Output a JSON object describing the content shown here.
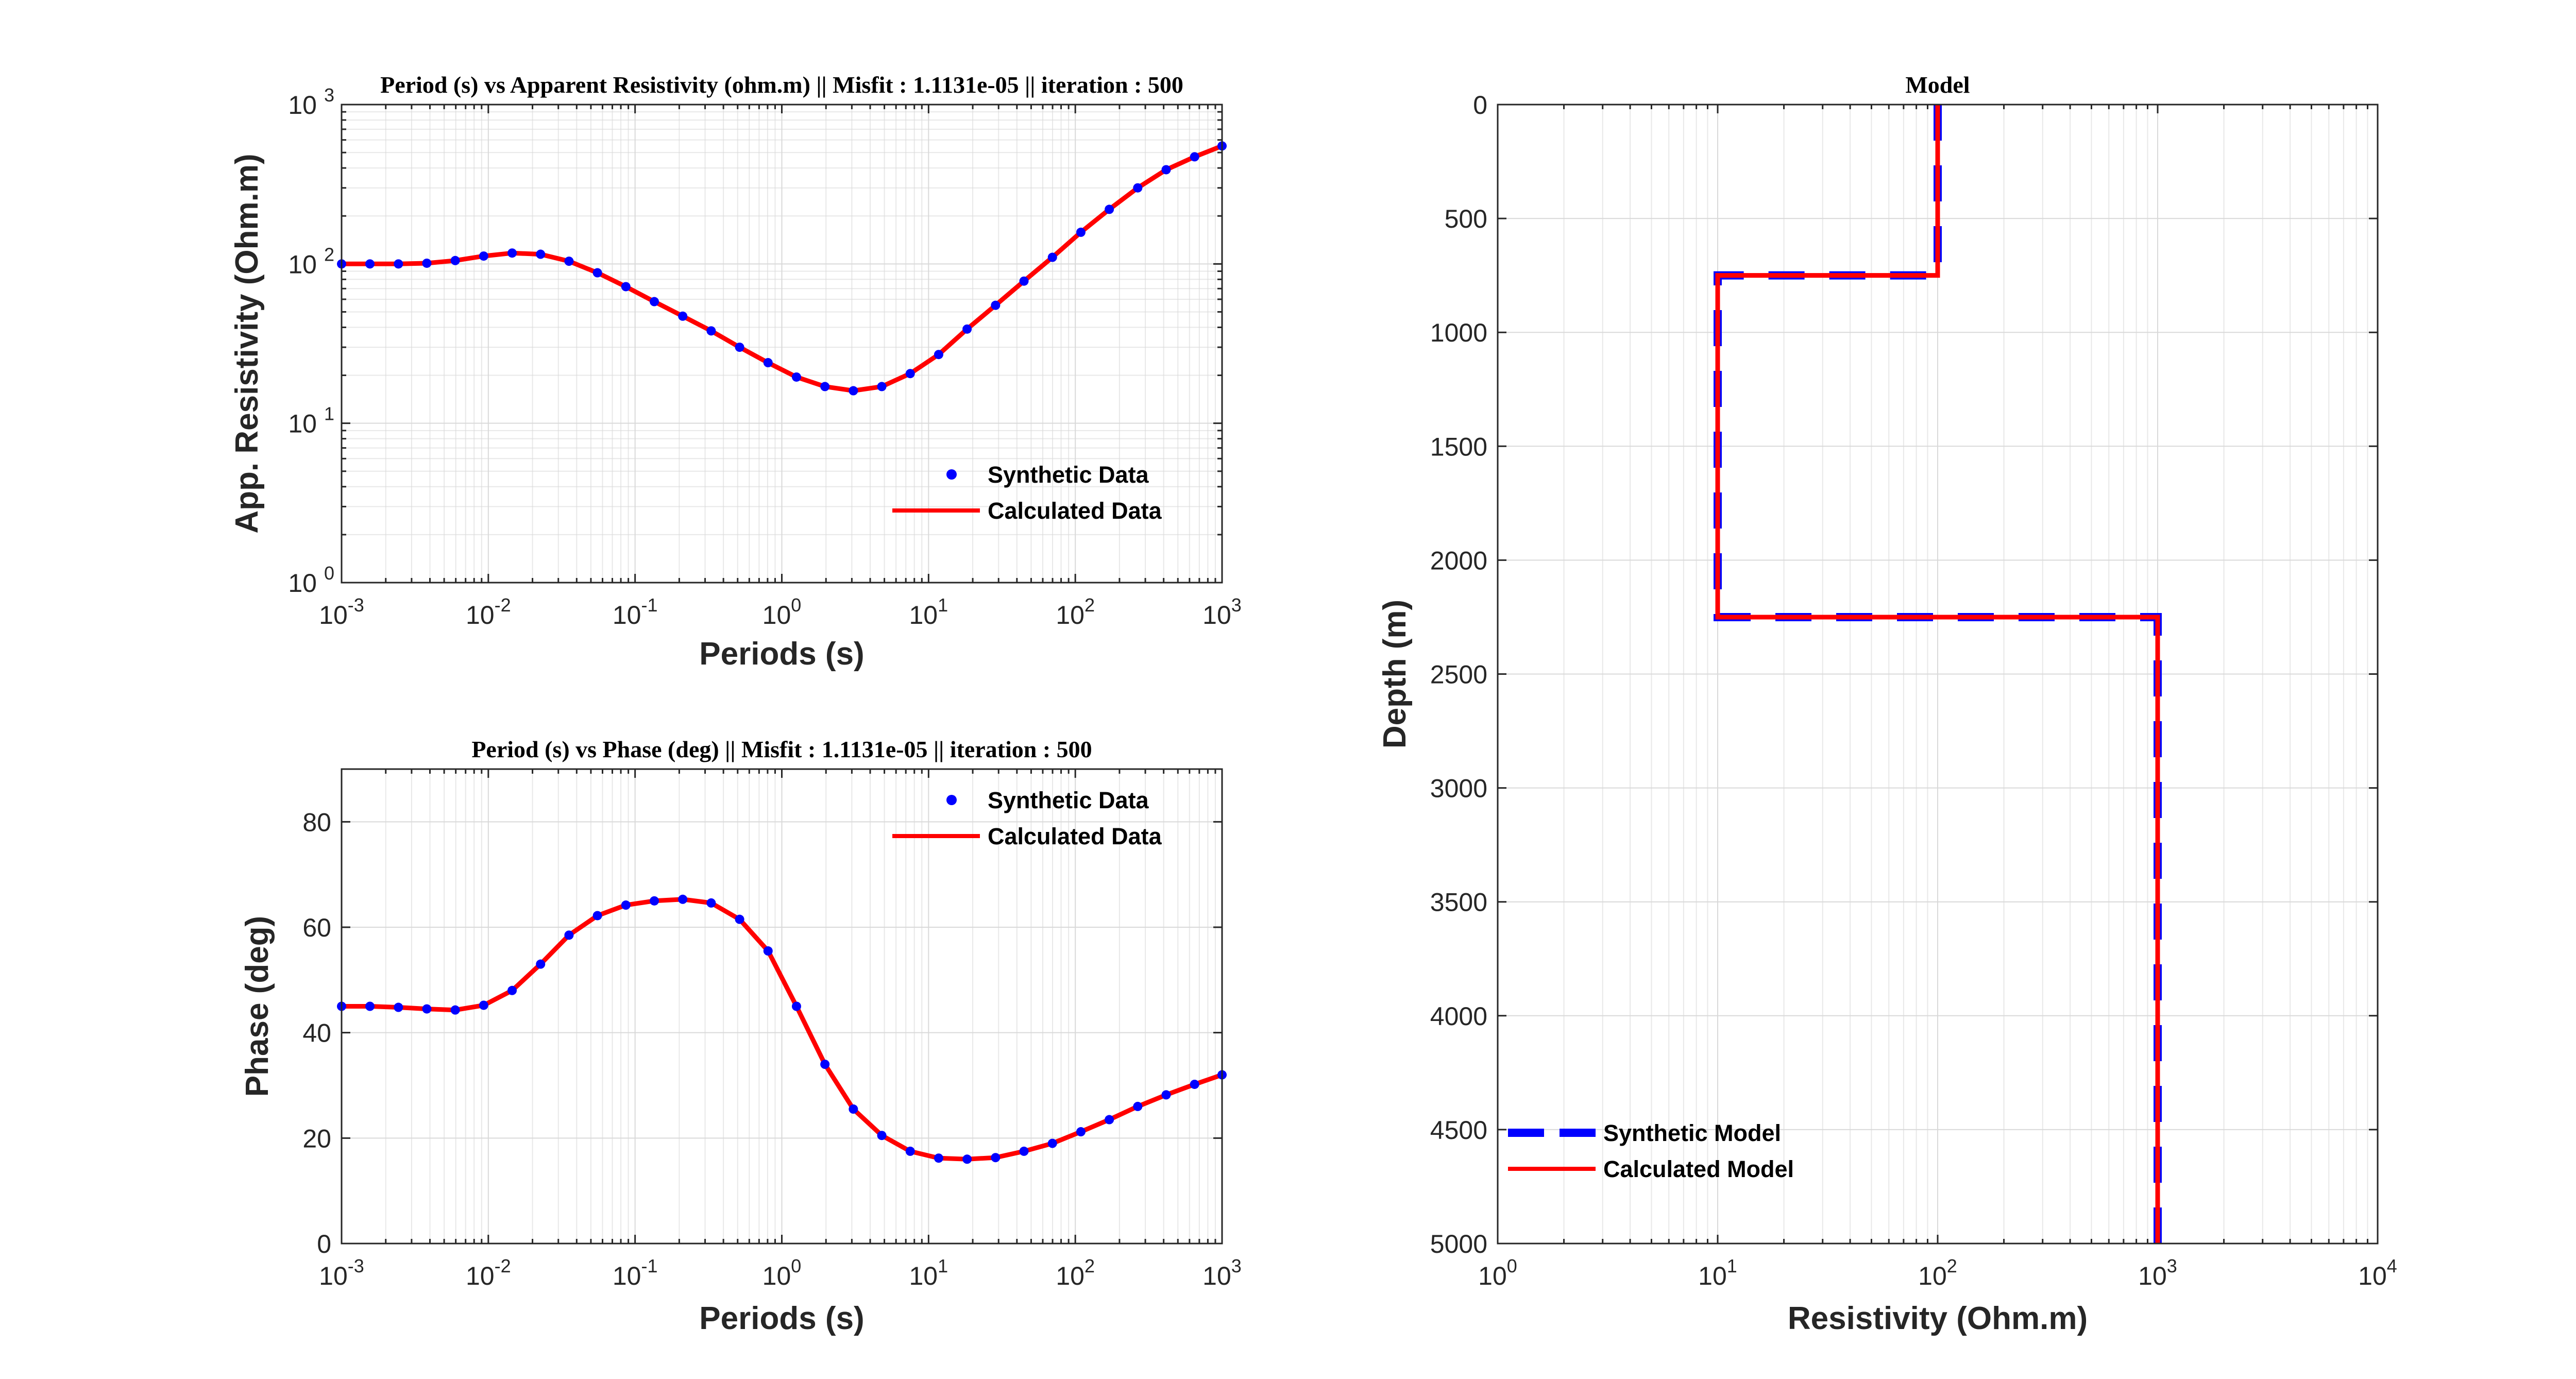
{
  "colors": {
    "synthetic": "#0000ff",
    "calculated": "#ff0000",
    "grid": "#d9d9d9",
    "axis": "#262626"
  },
  "chart_data": [
    {
      "type": "line",
      "title": "Period (s) vs Apparent Resistivity (ohm.m)  || Misfit : 1.1131e-05 || iteration : 500",
      "xlabel": "Periods (s)",
      "ylabel": "App. Resistivity (Ohm.m)",
      "xscale": "log",
      "yscale": "log",
      "xlim": [
        0.001,
        1000
      ],
      "ylim": [
        1,
        1000
      ],
      "xticks": [
        0.001,
        0.01,
        0.1,
        1,
        10,
        100,
        1000
      ],
      "xtick_labels": [
        {
          "b": "10",
          "e": "-3"
        },
        {
          "b": "10",
          "e": "-2"
        },
        {
          "b": "10",
          "e": "-1"
        },
        {
          "b": "10",
          "e": "0"
        },
        {
          "b": "10",
          "e": "1"
        },
        {
          "b": "10",
          "e": "2"
        },
        {
          "b": "10",
          "e": "3"
        }
      ],
      "yticks": [
        1,
        10,
        100,
        1000
      ],
      "ytick_labels": [
        {
          "b": "10",
          "e": "0"
        },
        {
          "b": "10",
          "e": "1"
        },
        {
          "b": "10",
          "e": "2"
        },
        {
          "b": "10",
          "e": "3"
        }
      ],
      "grid": true,
      "legend": {
        "position": "bottom-right",
        "entries": [
          "Synthetic Data",
          "Calculated Data"
        ]
      },
      "series": [
        {
          "name": "Synthetic Data",
          "style": "markers",
          "x": [
            0.001,
            0.00156,
            0.00244,
            0.00381,
            0.00595,
            0.0093,
            0.01453,
            0.0227,
            0.03546,
            0.0554,
            0.08656,
            0.13523,
            0.21127,
            0.33008,
            0.51571,
            0.80571,
            1.2588,
            1.9667,
            3.0726,
            4.8006,
            7.5,
            11.718,
            18.307,
            28.602,
            44.686,
            69.816,
            109.08,
            170.42,
            266.26,
            415.99,
            649.91,
            1000
          ],
          "y": [
            100,
            100,
            100,
            101,
            105,
            112,
            117,
            115,
            104,
            88,
            72,
            58,
            47,
            38,
            30,
            24,
            19.5,
            17,
            16,
            17,
            20.5,
            27,
            39,
            55,
            78,
            110,
            158,
            220,
            300,
            390,
            470,
            550
          ]
        },
        {
          "name": "Calculated Data",
          "style": "line",
          "x": [
            0.001,
            0.00156,
            0.00244,
            0.00381,
            0.00595,
            0.0093,
            0.01453,
            0.0227,
            0.03546,
            0.0554,
            0.08656,
            0.13523,
            0.21127,
            0.33008,
            0.51571,
            0.80571,
            1.2588,
            1.9667,
            3.0726,
            4.8006,
            7.5,
            11.718,
            18.307,
            28.602,
            44.686,
            69.816,
            109.08,
            170.42,
            266.26,
            415.99,
            649.91,
            1000
          ],
          "y": [
            100,
            100,
            100,
            101,
            105,
            112,
            117,
            115,
            104,
            88,
            72,
            58,
            47,
            38,
            30,
            24,
            19.5,
            17,
            16,
            17,
            20.5,
            27,
            39,
            55,
            78,
            110,
            158,
            220,
            300,
            390,
            470,
            550
          ]
        }
      ]
    },
    {
      "type": "line",
      "title": "Period (s) vs Phase (deg)  || Misfit : 1.1131e-05 || iteration : 500",
      "xlabel": "Periods (s)",
      "ylabel": "Phase (deg)",
      "xscale": "log",
      "yscale": "linear",
      "xlim": [
        0.001,
        1000
      ],
      "ylim": [
        0,
        90
      ],
      "xticks": [
        0.001,
        0.01,
        0.1,
        1,
        10,
        100,
        1000
      ],
      "xtick_labels": [
        {
          "b": "10",
          "e": "-3"
        },
        {
          "b": "10",
          "e": "-2"
        },
        {
          "b": "10",
          "e": "-1"
        },
        {
          "b": "10",
          "e": "0"
        },
        {
          "b": "10",
          "e": "1"
        },
        {
          "b": "10",
          "e": "2"
        },
        {
          "b": "10",
          "e": "3"
        }
      ],
      "yticks": [
        0,
        20,
        40,
        60,
        80
      ],
      "ytick_labels": [
        {
          "b": "0"
        },
        {
          "b": "20"
        },
        {
          "b": "40"
        },
        {
          "b": "60"
        },
        {
          "b": "80"
        }
      ],
      "grid": true,
      "legend": {
        "position": "top-right",
        "entries": [
          "Synthetic Data",
          "Calculated Data"
        ]
      },
      "series": [
        {
          "name": "Synthetic Data",
          "style": "markers",
          "x": [
            0.001,
            0.00156,
            0.00244,
            0.00381,
            0.00595,
            0.0093,
            0.01453,
            0.0227,
            0.03546,
            0.0554,
            0.08656,
            0.13523,
            0.21127,
            0.33008,
            0.51571,
            0.80571,
            1.2588,
            1.9667,
            3.0726,
            4.8006,
            7.5,
            11.718,
            18.307,
            28.602,
            44.686,
            69.816,
            109.08,
            170.42,
            266.26,
            415.99,
            649.91,
            1000
          ],
          "y": [
            45,
            45,
            44.8,
            44.5,
            44.3,
            45.2,
            48,
            53,
            58.5,
            62.2,
            64.2,
            65,
            65.3,
            64.6,
            61.5,
            55.5,
            45,
            34,
            25.5,
            20.5,
            17.5,
            16.2,
            16,
            16.3,
            17.5,
            19,
            21.2,
            23.5,
            26,
            28.2,
            30.2,
            32
          ]
        },
        {
          "name": "Calculated Data",
          "style": "line",
          "x": [
            0.001,
            0.00156,
            0.00244,
            0.00381,
            0.00595,
            0.0093,
            0.01453,
            0.0227,
            0.03546,
            0.0554,
            0.08656,
            0.13523,
            0.21127,
            0.33008,
            0.51571,
            0.80571,
            1.2588,
            1.9667,
            3.0726,
            4.8006,
            7.5,
            11.718,
            18.307,
            28.602,
            44.686,
            69.816,
            109.08,
            170.42,
            266.26,
            415.99,
            649.91,
            1000
          ],
          "y": [
            45,
            45,
            44.8,
            44.5,
            44.3,
            45.2,
            48,
            53,
            58.5,
            62.2,
            64.2,
            65,
            65.3,
            64.6,
            61.5,
            55.5,
            45,
            34,
            25.5,
            20.5,
            17.5,
            16.2,
            16,
            16.3,
            17.5,
            19,
            21.2,
            23.5,
            26,
            28.2,
            30.2,
            32
          ]
        }
      ]
    },
    {
      "type": "line",
      "title": "Model",
      "xlabel": "Resistivity (Ohm.m)",
      "ylabel": "Depth (m)",
      "xscale": "log",
      "yscale": "linear",
      "y_reversed": true,
      "xlim": [
        1,
        10000
      ],
      "ylim": [
        0,
        5000
      ],
      "xticks": [
        1,
        10,
        100,
        1000,
        10000
      ],
      "xtick_labels": [
        {
          "b": "10",
          "e": "0"
        },
        {
          "b": "10",
          "e": "1"
        },
        {
          "b": "10",
          "e": "2"
        },
        {
          "b": "10",
          "e": "3"
        },
        {
          "b": "10",
          "e": "4"
        }
      ],
      "yticks": [
        0,
        500,
        1000,
        1500,
        2000,
        2500,
        3000,
        3500,
        4000,
        4500,
        5000
      ],
      "ytick_labels": [
        {
          "b": "0"
        },
        {
          "b": "500"
        },
        {
          "b": "1000"
        },
        {
          "b": "1500"
        },
        {
          "b": "2000"
        },
        {
          "b": "2500"
        },
        {
          "b": "3000"
        },
        {
          "b": "3500"
        },
        {
          "b": "4000"
        },
        {
          "b": "4500"
        },
        {
          "b": "5000"
        }
      ],
      "grid": true,
      "legend": {
        "position": "bottom-left",
        "entries": [
          "Synthetic Model",
          "Calculated Model"
        ]
      },
      "series": [
        {
          "name": "Synthetic Model",
          "style": "dashed",
          "x": [
            100,
            100,
            10,
            10,
            1000,
            1000
          ],
          "y": [
            0,
            750,
            750,
            2250,
            2250,
            5000
          ]
        },
        {
          "name": "Calculated Model",
          "style": "line",
          "x": [
            100,
            100,
            10,
            10,
            1000,
            1000
          ],
          "y": [
            0,
            750,
            750,
            2250,
            2250,
            5000
          ]
        }
      ]
    }
  ]
}
